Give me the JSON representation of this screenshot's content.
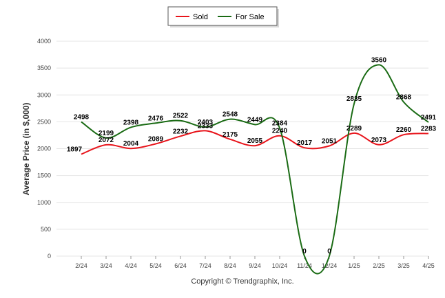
{
  "chart_data": {
    "type": "line",
    "ylabel": "Average Price (in $,000)",
    "xlabel": "",
    "ylim": [
      0,
      4000
    ],
    "yticks": [
      0,
      500,
      1000,
      1500,
      2000,
      2500,
      3000,
      3500,
      4000
    ],
    "categories": [
      "2/24",
      "3/24",
      "4/24",
      "5/24",
      "6/24",
      "7/24",
      "8/24",
      "9/24",
      "10/24",
      "11/24",
      "12/24",
      "1/25",
      "2/25",
      "3/25",
      "4/25"
    ],
    "series": [
      {
        "name": "Sold",
        "color": "#e8141b",
        "values": [
          1897,
          2072,
          2004,
          2089,
          2232,
          2333,
          2175,
          2055,
          2240,
          2017,
          2051,
          2289,
          2073,
          2260,
          2283
        ],
        "labels": [
          "1897",
          "2072",
          "2004",
          "2089",
          "2232",
          "2333",
          "2175",
          "2055",
          "2240",
          "2017",
          "2051",
          "2289",
          "2073",
          "2260",
          "2283"
        ]
      },
      {
        "name": "For Sale",
        "color": "#1a6b14",
        "values": [
          2498,
          2199,
          2398,
          2476,
          2522,
          2403,
          2548,
          2449,
          2384,
          0,
          0,
          2835,
          3560,
          2868,
          2491
        ],
        "labels": [
          "2498",
          "2199",
          "2398",
          "2476",
          "2522",
          "2403",
          "2548",
          "2449",
          "2384",
          "0",
          "0",
          "2835",
          "3560",
          "2868",
          "2491"
        ]
      }
    ],
    "grid": true,
    "legend": "top-center"
  },
  "footer": "Copyright © Trendgraphix, Inc."
}
